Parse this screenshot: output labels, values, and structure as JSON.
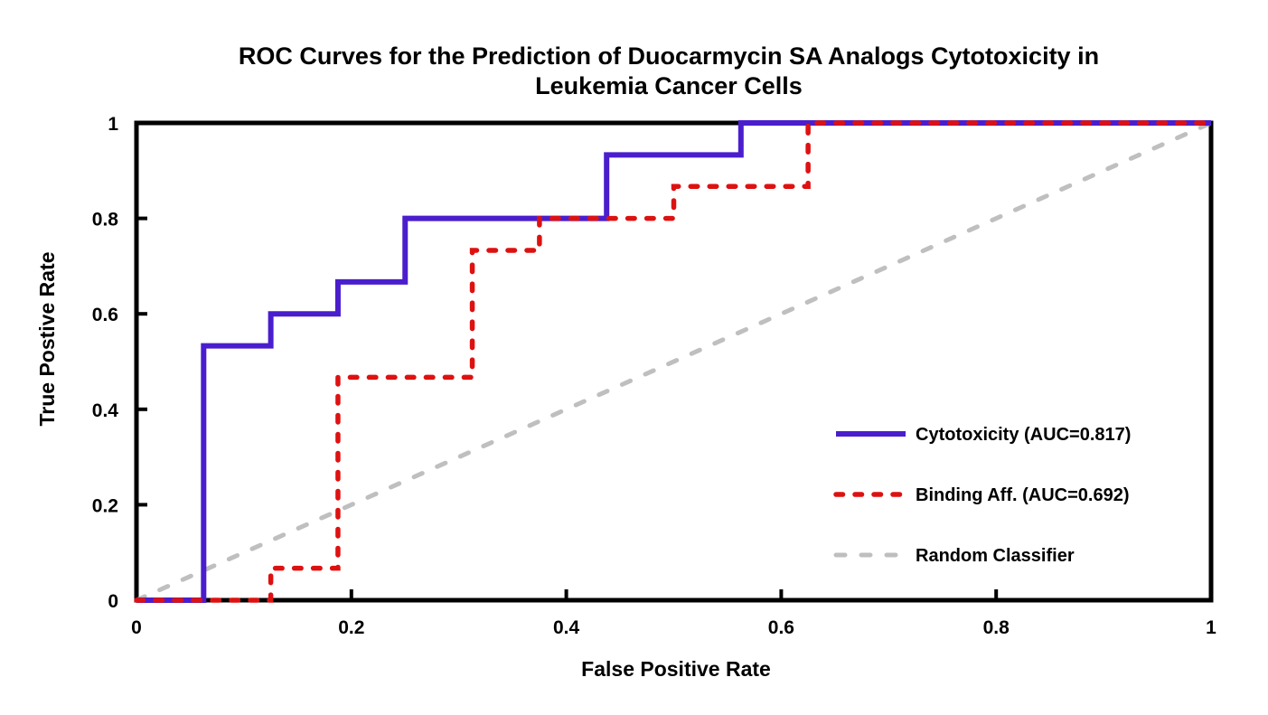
{
  "title": {
    "line1": "ROC Curves for the Prediction of Duocarmycin SA Analogs Cytotoxicity in",
    "line2": "Leukemia Cancer Cells"
  },
  "chart_data": {
    "type": "line",
    "subtype": "roc-step-curves",
    "title": "ROC Curves for the Prediction of Duocarmycin SA Analogs Cytotoxicity in Leukemia Cancer Cells",
    "xlabel": "False Positive Rate",
    "ylabel": "True Postive Rate",
    "xlim": [
      0,
      1
    ],
    "ylim": [
      0,
      1
    ],
    "xticks": [
      0,
      0.2,
      0.4,
      0.6,
      0.8,
      1
    ],
    "xtick_labels": [
      "0",
      "0.2",
      "0.4",
      "0.6",
      "0.8",
      "1"
    ],
    "yticks": [
      0,
      0.2,
      0.4,
      0.6,
      0.8,
      1
    ],
    "ytick_labels": [
      "0",
      "0.2",
      "0.4",
      "0.6",
      "0.8",
      "1"
    ],
    "grid": false,
    "plot_border": true,
    "legend_position": "inside-right",
    "colors": {
      "cytotoxicity": "#4A1ECD",
      "binding_aff": "#DE1111",
      "random_classifier": "#BFBFBF",
      "axis": "#000000"
    },
    "series": [
      {
        "name": "Cytotoxicity",
        "auc": 0.817,
        "legend_label": "Cytotoxicity (AUC=0.817)",
        "color": "#4A1ECD",
        "line_style": "solid",
        "width": 6,
        "dash": null,
        "zorder": 2,
        "points": [
          [
            0,
            0
          ],
          [
            0.0625,
            0
          ],
          [
            0.0625,
            0.533
          ],
          [
            0.125,
            0.533
          ],
          [
            0.125,
            0.6
          ],
          [
            0.1875,
            0.6
          ],
          [
            0.1875,
            0.667
          ],
          [
            0.25,
            0.667
          ],
          [
            0.25,
            0.8
          ],
          [
            0.4375,
            0.8
          ],
          [
            0.4375,
            0.933
          ],
          [
            0.5625,
            0.933
          ],
          [
            0.5625,
            1
          ],
          [
            1,
            1
          ]
        ]
      },
      {
        "name": "Binding Aff.",
        "auc": 0.692,
        "legend_label": "Binding Aff. (AUC=0.692)",
        "color": "#DE1111",
        "line_style": "dashed",
        "width": 5.5,
        "dash": [
          7.5,
          13.5
        ],
        "zorder": 3,
        "points": [
          [
            0,
            0
          ],
          [
            0.125,
            0
          ],
          [
            0.125,
            0.067
          ],
          [
            0.1875,
            0.067
          ],
          [
            0.1875,
            0.467
          ],
          [
            0.3125,
            0.467
          ],
          [
            0.3125,
            0.733
          ],
          [
            0.375,
            0.733
          ],
          [
            0.375,
            0.8
          ],
          [
            0.5,
            0.8
          ],
          [
            0.5,
            0.867
          ],
          [
            0.625,
            0.867
          ],
          [
            0.625,
            1
          ],
          [
            1,
            1
          ]
        ]
      },
      {
        "name": "Random Classifier",
        "legend_label": "Random Classifier",
        "color": "#BFBFBF",
        "line_style": "dashed",
        "width": 5,
        "dash": [
          10,
          18
        ],
        "zorder": 1,
        "points": [
          [
            0,
            0
          ],
          [
            1,
            1
          ]
        ]
      }
    ]
  }
}
